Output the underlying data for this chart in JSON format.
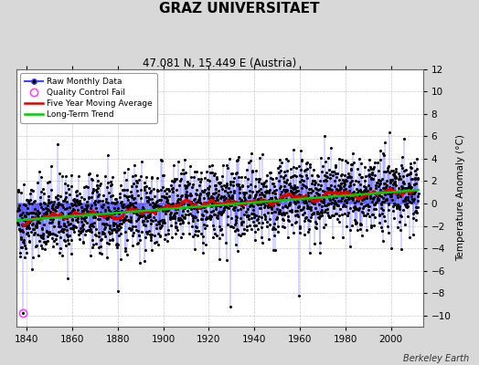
{
  "title": "GRAZ UNIVERSITAET",
  "subtitle": "47.081 N, 15.449 E (Austria)",
  "ylabel": "Temperature Anomaly (°C)",
  "xlabel_credit": "Berkeley Earth",
  "year_start": 1836,
  "year_end": 2012,
  "ylim": [
    -11,
    12
  ],
  "yticks": [
    -10,
    -8,
    -6,
    -4,
    -2,
    0,
    2,
    4,
    6,
    8,
    10,
    12
  ],
  "xticks": [
    1840,
    1860,
    1880,
    1900,
    1920,
    1940,
    1960,
    1980,
    2000
  ],
  "fig_bg_color": "#d8d8d8",
  "plot_bg_color": "#ffffff",
  "line_color": "#4444ff",
  "marker_color": "#000000",
  "ma_color": "#dd0000",
  "trend_color": "#00cc00",
  "qc_color": "#ff44ff",
  "seed": 42
}
